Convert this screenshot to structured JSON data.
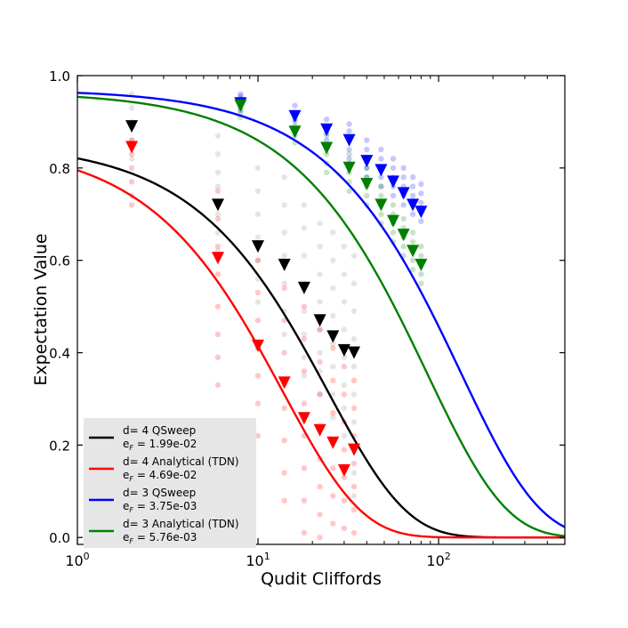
{
  "chart_data": {
    "type": "scatter",
    "xlabel": "Qudit Cliffords",
    "ylabel": "Expectation Value",
    "xscale": "log",
    "xlim": [
      1,
      500
    ],
    "ylim": [
      -0.015,
      1.0
    ],
    "x_ticks": [
      {
        "value": 1,
        "base": "10",
        "exp": "0"
      },
      {
        "value": 10,
        "base": "10",
        "exp": "1"
      },
      {
        "value": 100,
        "base": "10",
        "exp": "2"
      }
    ],
    "y_ticks": [
      {
        "value": 0.0,
        "label": "0.0"
      },
      {
        "value": 0.2,
        "label": "0.2"
      },
      {
        "value": 0.4,
        "label": "0.4"
      },
      {
        "value": 0.6,
        "label": "0.6"
      },
      {
        "value": 0.8,
        "label": "0.8"
      },
      {
        "value": 1.0,
        "label": "1.0"
      }
    ],
    "grid": false,
    "legend_position": "lower-left",
    "series": [
      {
        "name": "d= 4 QSweep",
        "error_label": "e",
        "error_sub": "F",
        "error_value": " = 1.99e-02",
        "color": "#000000",
        "fit": {
          "A": 0.855,
          "p": 0.96,
          "B": 0.0
        },
        "x": [
          2,
          6,
          10,
          14,
          18,
          22,
          26,
          30,
          34
        ],
        "y": [
          0.89,
          0.72,
          0.63,
          0.59,
          0.54,
          0.47,
          0.435,
          0.405,
          0.4
        ],
        "samples": [
          [
            0.96,
            0.93,
            0.9,
            0.86,
            0.82
          ],
          [
            0.87,
            0.83,
            0.79,
            0.76,
            0.7,
            0.66,
            0.62
          ],
          [
            0.8,
            0.75,
            0.7,
            0.65,
            0.6,
            0.56,
            0.51
          ],
          [
            0.78,
            0.72,
            0.66,
            0.61,
            0.55,
            0.49,
            0.44
          ],
          [
            0.72,
            0.67,
            0.61,
            0.55,
            0.49,
            0.44,
            0.39,
            0.35
          ],
          [
            0.68,
            0.63,
            0.57,
            0.51,
            0.45,
            0.4,
            0.36,
            0.31
          ],
          [
            0.66,
            0.6,
            0.54,
            0.48,
            0.42,
            0.37,
            0.31,
            0.26
          ],
          [
            0.63,
            0.57,
            0.51,
            0.45,
            0.39,
            0.33,
            0.28,
            0.22
          ],
          [
            0.61,
            0.55,
            0.49,
            0.43,
            0.37,
            0.31,
            0.25,
            0.19,
            0.14,
            0.09
          ]
        ]
      },
      {
        "name": "d= 4 Analytical (TDN)",
        "error_label": "e",
        "error_sub": "F",
        "error_value": " = 4.69e-02",
        "color": "#ff0000",
        "fit": {
          "A": 0.855,
          "p": 0.93,
          "B": 0.0
        },
        "x": [
          2,
          6,
          10,
          14,
          18,
          22,
          26,
          30,
          34
        ],
        "y": [
          0.845,
          0.605,
          0.415,
          0.335,
          0.258,
          0.232,
          0.205,
          0.145,
          0.19
        ],
        "samples": [
          [
            0.86,
            0.83,
            0.8,
            0.77,
            0.74,
            0.72
          ],
          [
            0.75,
            0.69,
            0.63,
            0.57,
            0.5,
            0.44,
            0.39,
            0.33
          ],
          [
            0.6,
            0.53,
            0.47,
            0.41,
            0.35,
            0.29,
            0.22
          ],
          [
            0.54,
            0.47,
            0.4,
            0.34,
            0.28,
            0.21,
            0.14,
            0.08
          ],
          [
            0.5,
            0.43,
            0.36,
            0.29,
            0.22,
            0.15,
            0.08,
            0.01
          ],
          [
            0.45,
            0.38,
            0.31,
            0.24,
            0.17,
            0.11,
            0.05,
            0.0
          ],
          [
            0.41,
            0.34,
            0.27,
            0.21,
            0.15,
            0.09,
            0.03
          ],
          [
            0.37,
            0.31,
            0.25,
            0.19,
            0.13,
            0.08,
            0.02
          ],
          [
            0.34,
            0.28,
            0.22,
            0.16,
            0.11,
            0.06,
            0.01
          ]
        ]
      },
      {
        "name": "d= 3 QSweep",
        "error_label": "e",
        "error_sub": "F",
        "error_value": " = 3.75e-03",
        "color": "#0000ff",
        "fit": {
          "A": 0.97,
          "p": 0.9925,
          "B": 0.0
        },
        "x": [
          8,
          16,
          24,
          32,
          40,
          48,
          56,
          64,
          72,
          80
        ],
        "y": [
          0.94,
          0.912,
          0.883,
          0.86,
          0.815,
          0.795,
          0.77,
          0.745,
          0.72,
          0.705
        ],
        "samples": [
          [
            0.96,
            0.955,
            0.945,
            0.935,
            0.925
          ],
          [
            0.935,
            0.92,
            0.905,
            0.89
          ],
          [
            0.905,
            0.89,
            0.875,
            0.86,
            0.845
          ],
          [
            0.895,
            0.88,
            0.86,
            0.84,
            0.82
          ],
          [
            0.86,
            0.84,
            0.82,
            0.8,
            0.78
          ],
          [
            0.84,
            0.82,
            0.8,
            0.78,
            0.76
          ],
          [
            0.82,
            0.8,
            0.78,
            0.76,
            0.74
          ],
          [
            0.8,
            0.78,
            0.76,
            0.74,
            0.72
          ],
          [
            0.78,
            0.76,
            0.74,
            0.72,
            0.7
          ],
          [
            0.765,
            0.745,
            0.725,
            0.705,
            0.685
          ]
        ]
      },
      {
        "name": "d= 3 Analytical (TDN)",
        "error_label": "e",
        "error_sub": "F",
        "error_value": " = 5.76e-03",
        "color": "#008000",
        "fit": {
          "A": 0.965,
          "p": 0.9885,
          "B": 0.0
        },
        "x": [
          8,
          16,
          24,
          32,
          40,
          48,
          56,
          64,
          72,
          80
        ],
        "y": [
          0.935,
          0.878,
          0.843,
          0.8,
          0.765,
          0.72,
          0.685,
          0.655,
          0.62,
          0.59
        ],
        "samples": [
          [
            0.95,
            0.94,
            0.93,
            0.92,
            0.91
          ],
          [
            0.9,
            0.885,
            0.87,
            0.855
          ],
          [
            0.87,
            0.85,
            0.83,
            0.81,
            0.79
          ],
          [
            0.83,
            0.81,
            0.79,
            0.77,
            0.75
          ],
          [
            0.8,
            0.78,
            0.76,
            0.74,
            0.72
          ],
          [
            0.76,
            0.74,
            0.72,
            0.7,
            0.68
          ],
          [
            0.72,
            0.7,
            0.68,
            0.66,
            0.64
          ],
          [
            0.69,
            0.67,
            0.65,
            0.63,
            0.61
          ],
          [
            0.66,
            0.64,
            0.62,
            0.6,
            0.58
          ],
          [
            0.63,
            0.61,
            0.59,
            0.57,
            0.55
          ]
        ]
      }
    ]
  }
}
